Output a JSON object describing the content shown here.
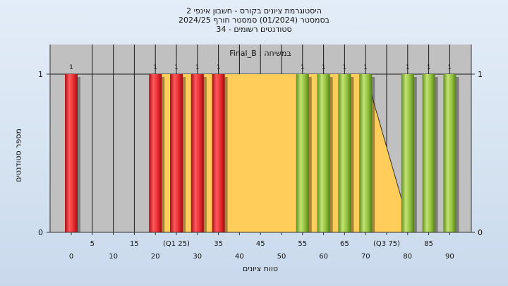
{
  "chart_data": {
    "type": "bar",
    "title_lines": [
      "היסטוגרמת ציונים בקורס - חשבון אינפי 2",
      "בסמסטר (01/2024) סמסטר חורף 2024/25",
      "סטודנטים רשומים - 34"
    ],
    "annotation": "במשיחה : Final_B",
    "xlabel": "טווח ציונים",
    "ylabel": "מספר סטודנטים",
    "y_ticks": [
      "0",
      "1"
    ],
    "y_ticks_right": [
      "0",
      "1"
    ],
    "ylim": [
      0,
      1
    ],
    "x_ticks_top": [
      "5",
      "15",
      "(Q1 25)",
      "35",
      "45",
      "55",
      "65",
      "(Q3 75)",
      "85"
    ],
    "x_ticks_bottom": [
      "0",
      "10",
      "20",
      "30",
      "40",
      "50",
      "60",
      "70",
      "80",
      "90"
    ],
    "bars": [
      {
        "x": 0,
        "value": 1,
        "color": "red"
      },
      {
        "x": 20,
        "value": 1,
        "color": "red"
      },
      {
        "x": 25,
        "value": 1,
        "color": "red"
      },
      {
        "x": 30,
        "value": 1,
        "color": "red"
      },
      {
        "x": 35,
        "value": 1,
        "color": "red"
      },
      {
        "x": 55,
        "value": 1,
        "color": "green"
      },
      {
        "x": 60,
        "value": 1,
        "color": "green"
      },
      {
        "x": 65,
        "value": 1,
        "color": "green"
      },
      {
        "x": 70,
        "value": 1,
        "color": "green"
      },
      {
        "x": 80,
        "value": 1,
        "color": "green"
      },
      {
        "x": 85,
        "value": 1,
        "color": "green"
      },
      {
        "x": 90,
        "value": 1,
        "color": "green"
      }
    ],
    "bar_value_labels": [
      "1",
      "1",
      "1",
      "1",
      "1",
      "1",
      "1",
      "1",
      "1",
      "1",
      "1",
      "1"
    ],
    "area_series": [
      {
        "x": 20,
        "y": 1
      },
      {
        "x": 70,
        "y": 1
      },
      {
        "x": 79,
        "y": 0.17
      }
    ],
    "grid": true,
    "colors": {
      "plot_bg": "#c0c0c0",
      "area_fill": "#ffcd59",
      "red_bar": "#e52a2e",
      "green_bar": "#8ebf3a",
      "grid": "#1a1a1a"
    }
  }
}
